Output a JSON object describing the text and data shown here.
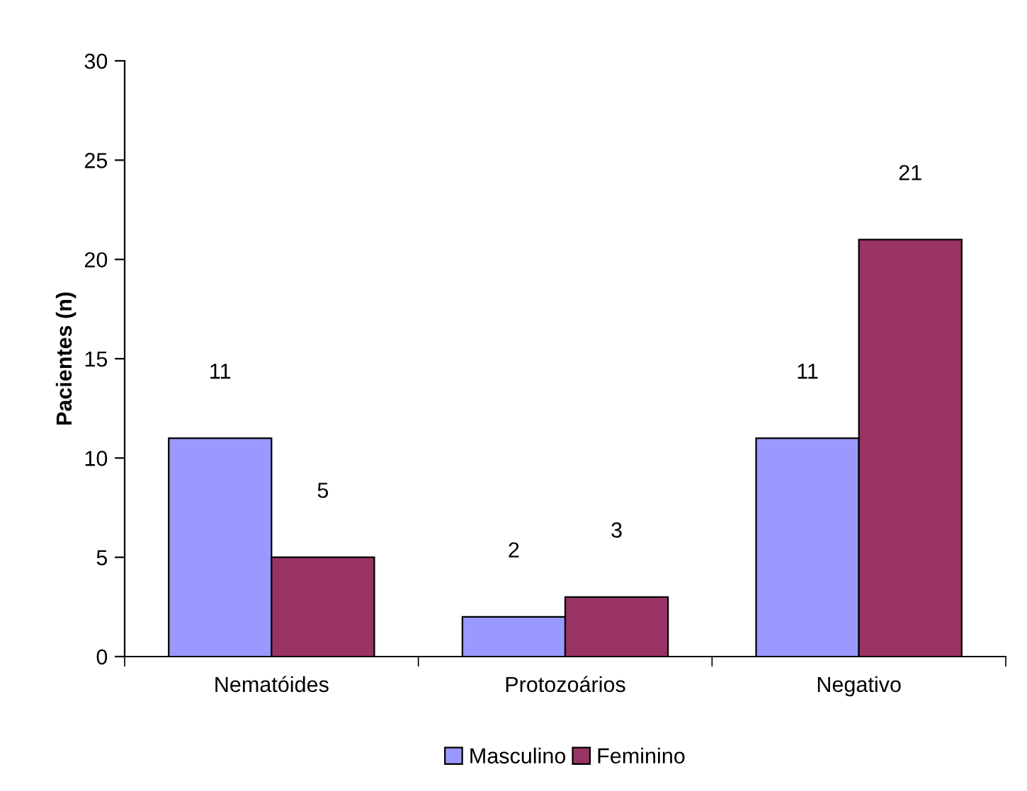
{
  "chart_data": {
    "type": "bar",
    "ylabel": "Pacientes (n)",
    "categories": [
      "Nematóides",
      "Protozoários",
      "Negativo"
    ],
    "series": [
      {
        "name": "Masculino",
        "color": "#9999ff",
        "values": [
          11,
          2,
          11
        ]
      },
      {
        "name": "Feminino",
        "color": "#993366",
        "values": [
          5,
          3,
          21
        ]
      }
    ],
    "ylim": [
      0,
      30
    ],
    "yticks": [
      0,
      5,
      10,
      15,
      20,
      25,
      30
    ],
    "data_labels": true,
    "legend": "bottom",
    "grid": false
  }
}
